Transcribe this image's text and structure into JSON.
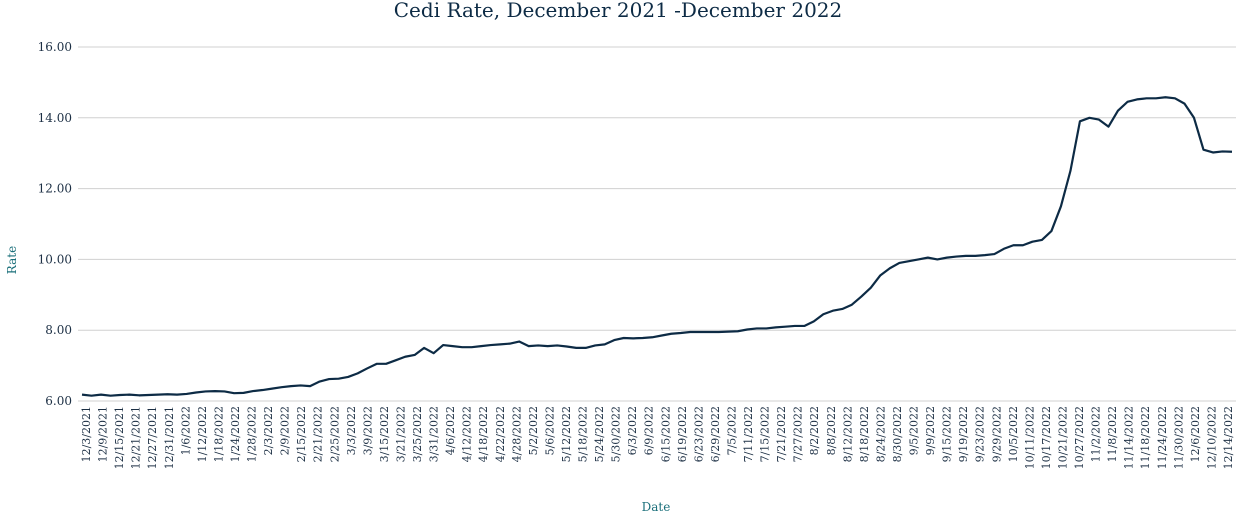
{
  "chart_data": {
    "type": "line",
    "title": "Cedi Rate, December 2021 -December 2022",
    "xlabel": "Date",
    "ylabel": "Rate",
    "ylim": [
      6,
      16
    ],
    "yticks": [
      "6.00",
      "8.00",
      "10.00",
      "12.00",
      "14.00",
      "16.00"
    ],
    "grid": true,
    "legend": "none",
    "line_color": "#0d2b45",
    "x_tick_labels": [
      "12/3/2021",
      "12/9/2021",
      "12/15/2021",
      "12/21/2021",
      "12/27/2021",
      "12/31/2021",
      "1/6/2022",
      "1/12/2022",
      "1/18/2022",
      "1/24/2022",
      "1/28/2022",
      "2/3/2022",
      "2/9/2022",
      "2/15/2022",
      "2/21/2022",
      "2/25/2022",
      "3/3/2022",
      "3/9/2022",
      "3/15/2022",
      "3/21/2022",
      "3/25/2022",
      "3/31/2022",
      "4/6/2022",
      "4/12/2022",
      "4/18/2022",
      "4/22/2022",
      "4/28/2022",
      "5/2/2022",
      "5/6/2022",
      "5/12/2022",
      "5/18/2022",
      "5/24/2022",
      "5/30/2022",
      "6/3/2022",
      "6/9/2022",
      "6/15/2022",
      "6/19/2022",
      "6/23/2022",
      "6/29/2022",
      "7/5/2022",
      "7/11/2022",
      "7/15/2022",
      "7/21/2022",
      "7/27/2022",
      "8/2/2022",
      "8/8/2022",
      "8/12/2022",
      "8/18/2022",
      "8/24/2022",
      "8/30/2022",
      "9/5/2022",
      "9/9/2022",
      "9/15/2022",
      "9/19/2022",
      "9/23/2022",
      "9/29/2022",
      "10/5/2022",
      "10/11/2022",
      "10/17/2022",
      "10/21/2022",
      "10/27/2022",
      "11/2/2022",
      "11/8/2022",
      "11/14/2022",
      "11/18/2022",
      "11/24/2022",
      "11/30/2022",
      "12/6/2022",
      "12/10/2022",
      "12/14/2022"
    ],
    "series": [
      {
        "values": [
          6.18,
          6.15,
          6.18,
          6.15,
          6.17,
          6.18,
          6.16,
          6.17,
          6.18,
          6.19,
          6.18,
          6.2,
          6.24,
          6.27,
          6.28,
          6.27,
          6.22,
          6.23,
          6.28,
          6.31,
          6.35,
          6.39,
          6.42,
          6.44,
          6.42,
          6.55,
          6.62,
          6.63,
          6.68,
          6.78,
          6.92,
          7.05,
          7.05,
          7.15,
          7.25,
          7.3,
          7.5,
          7.35,
          7.58,
          7.55,
          7.52,
          7.52,
          7.55,
          7.58,
          7.6,
          7.62,
          7.68,
          7.55,
          7.57,
          7.55,
          7.57,
          7.54,
          7.5,
          7.5,
          7.57,
          7.6,
          7.72,
          7.78,
          7.77,
          7.78,
          7.8,
          7.85,
          7.9,
          7.92,
          7.95,
          7.95,
          7.95,
          7.95,
          7.96,
          7.97,
          8.02,
          8.05,
          8.05,
          8.08,
          8.1,
          8.12,
          8.12,
          8.25,
          8.45,
          8.55,
          8.6,
          8.72,
          8.95,
          9.2,
          9.55,
          9.75,
          9.9,
          9.95,
          10.0,
          10.05,
          10.0,
          10.05,
          10.08,
          10.1,
          10.1,
          10.12,
          10.15,
          10.3,
          10.4,
          10.4,
          10.5,
          10.55,
          10.8,
          11.5,
          12.5,
          13.9,
          14.0,
          13.95,
          13.75,
          14.2,
          14.45,
          14.52,
          14.55,
          14.55,
          14.58,
          14.55,
          14.4,
          14.0,
          13.1,
          13.02,
          13.05,
          13.04
        ]
      }
    ]
  }
}
